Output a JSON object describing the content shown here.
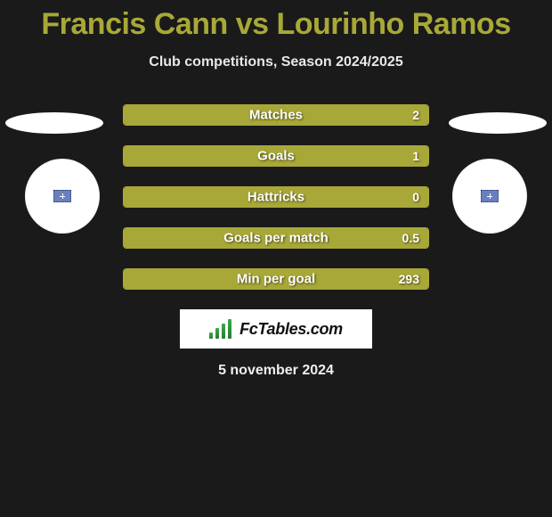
{
  "header": {
    "title": "Francis Cann vs Lourinho Ramos",
    "subtitle": "Club competitions, Season 2024/2025"
  },
  "colors": {
    "background": "#1a1a1a",
    "accent": "#a8a838",
    "text": "#ffffff",
    "subtext": "#e8e8e8",
    "white": "#ffffff"
  },
  "chart": {
    "type": "bar",
    "bar_fill_percent_default": 100,
    "rows": [
      {
        "label": "Matches",
        "value": "2",
        "fill_percent": 100
      },
      {
        "label": "Goals",
        "value": "1",
        "fill_percent": 100
      },
      {
        "label": "Hattricks",
        "value": "0",
        "fill_percent": 100
      },
      {
        "label": "Goals per match",
        "value": "0.5",
        "fill_percent": 100
      },
      {
        "label": "Min per goal",
        "value": "293",
        "fill_percent": 100
      }
    ]
  },
  "footer": {
    "brand": "FcTables.com",
    "date": "5 november 2024"
  }
}
